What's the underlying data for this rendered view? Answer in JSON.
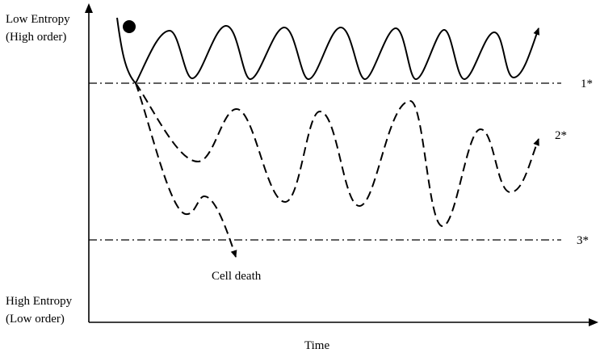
{
  "labels": {
    "top_line1": "Low Entropy",
    "top_line2": "(High order)",
    "bottom_line1": "High Entropy",
    "bottom_line2": "(Low order)",
    "x_axis": "Time",
    "cell_death": "Cell death",
    "level_1": "1*",
    "level_2": "2*",
    "level_3": "3*"
  }
}
